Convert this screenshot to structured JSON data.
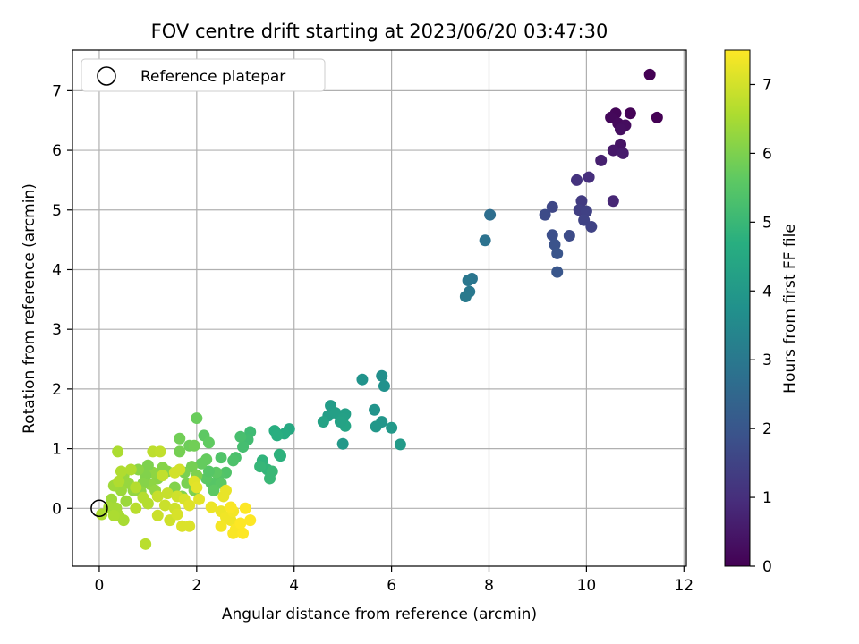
{
  "chart_data": {
    "type": "scatter",
    "title": "FOV centre drift starting at 2023/06/20 03:47:30",
    "xlabel": "Angular distance from reference (arcmin)",
    "ylabel": "Rotation from reference (arcmin)",
    "xlim": [
      -0.55,
      12.05
    ],
    "ylim": [
      -0.97,
      7.68
    ],
    "xticks": [
      0,
      2,
      4,
      6,
      8,
      10,
      12
    ],
    "yticks": [
      0,
      1,
      2,
      3,
      4,
      5,
      6,
      7
    ],
    "grid": true,
    "legend": {
      "placement": "upper-left",
      "entries": [
        "Reference platepar"
      ]
    },
    "reference_point": {
      "x": 0,
      "y": 0
    },
    "colorbar": {
      "label": "Hours from first FF file",
      "colormap": "viridis",
      "range": [
        0,
        7.5
      ],
      "ticks": [
        0,
        1,
        2,
        3,
        4,
        5,
        6,
        7
      ]
    },
    "points": [
      {
        "x": 11.3,
        "y": 7.27,
        "c": 0.0
      },
      {
        "x": 11.45,
        "y": 6.55,
        "c": 0.0
      },
      {
        "x": 10.9,
        "y": 6.62,
        "c": 0.05
      },
      {
        "x": 10.6,
        "y": 6.62,
        "c": 0.1
      },
      {
        "x": 10.5,
        "y": 6.55,
        "c": 0.15
      },
      {
        "x": 10.65,
        "y": 6.45,
        "c": 0.2
      },
      {
        "x": 10.8,
        "y": 6.42,
        "c": 0.25
      },
      {
        "x": 10.7,
        "y": 6.35,
        "c": 0.3
      },
      {
        "x": 10.7,
        "y": 6.1,
        "c": 0.4
      },
      {
        "x": 10.55,
        "y": 6.0,
        "c": 0.5
      },
      {
        "x": 10.75,
        "y": 5.95,
        "c": 0.55
      },
      {
        "x": 10.3,
        "y": 5.83,
        "c": 0.65
      },
      {
        "x": 10.05,
        "y": 5.55,
        "c": 1.0
      },
      {
        "x": 9.8,
        "y": 5.5,
        "c": 1.1
      },
      {
        "x": 10.55,
        "y": 5.15,
        "c": 0.8
      },
      {
        "x": 9.9,
        "y": 5.15,
        "c": 1.3
      },
      {
        "x": 9.85,
        "y": 5.0,
        "c": 1.4
      },
      {
        "x": 10.0,
        "y": 4.98,
        "c": 1.45
      },
      {
        "x": 9.95,
        "y": 4.83,
        "c": 1.5
      },
      {
        "x": 10.1,
        "y": 4.72,
        "c": 1.5
      },
      {
        "x": 9.3,
        "y": 5.05,
        "c": 1.6
      },
      {
        "x": 9.15,
        "y": 4.92,
        "c": 1.7
      },
      {
        "x": 9.65,
        "y": 4.57,
        "c": 1.7
      },
      {
        "x": 9.3,
        "y": 4.58,
        "c": 1.8
      },
      {
        "x": 9.35,
        "y": 4.42,
        "c": 1.9
      },
      {
        "x": 9.4,
        "y": 4.27,
        "c": 1.95
      },
      {
        "x": 9.4,
        "y": 3.96,
        "c": 2.0
      },
      {
        "x": 8.02,
        "y": 4.92,
        "c": 2.7
      },
      {
        "x": 7.92,
        "y": 4.49,
        "c": 2.8
      },
      {
        "x": 7.65,
        "y": 3.85,
        "c": 2.9
      },
      {
        "x": 7.57,
        "y": 3.82,
        "c": 2.95
      },
      {
        "x": 7.6,
        "y": 3.63,
        "c": 3.0
      },
      {
        "x": 7.52,
        "y": 3.55,
        "c": 3.05
      },
      {
        "x": 5.8,
        "y": 2.22,
        "c": 3.7
      },
      {
        "x": 5.85,
        "y": 2.05,
        "c": 3.75
      },
      {
        "x": 5.4,
        "y": 2.16,
        "c": 3.8
      },
      {
        "x": 5.65,
        "y": 1.65,
        "c": 3.85
      },
      {
        "x": 5.8,
        "y": 1.45,
        "c": 3.9
      },
      {
        "x": 5.68,
        "y": 1.37,
        "c": 3.95
      },
      {
        "x": 6.0,
        "y": 1.35,
        "c": 4.0
      },
      {
        "x": 6.18,
        "y": 1.07,
        "c": 4.05
      },
      {
        "x": 5.0,
        "y": 1.08,
        "c": 4.0
      },
      {
        "x": 4.75,
        "y": 1.72,
        "c": 4.1
      },
      {
        "x": 4.7,
        "y": 1.55,
        "c": 4.15
      },
      {
        "x": 4.85,
        "y": 1.6,
        "c": 4.2
      },
      {
        "x": 5.05,
        "y": 1.58,
        "c": 4.2
      },
      {
        "x": 5.0,
        "y": 1.5,
        "c": 4.25
      },
      {
        "x": 4.6,
        "y": 1.45,
        "c": 4.3
      },
      {
        "x": 5.05,
        "y": 1.38,
        "c": 4.35
      },
      {
        "x": 4.95,
        "y": 1.45,
        "c": 4.3
      },
      {
        "x": 3.9,
        "y": 1.33,
        "c": 4.5
      },
      {
        "x": 3.8,
        "y": 1.25,
        "c": 4.6
      },
      {
        "x": 3.6,
        "y": 1.3,
        "c": 4.65
      },
      {
        "x": 3.65,
        "y": 1.22,
        "c": 4.7
      },
      {
        "x": 3.72,
        "y": 0.88,
        "c": 4.75
      },
      {
        "x": 3.7,
        "y": 0.9,
        "c": 4.8
      },
      {
        "x": 3.35,
        "y": 0.8,
        "c": 4.85
      },
      {
        "x": 3.45,
        "y": 0.65,
        "c": 4.9
      },
      {
        "x": 3.3,
        "y": 0.7,
        "c": 4.95
      },
      {
        "x": 3.5,
        "y": 0.5,
        "c": 5.0
      },
      {
        "x": 3.55,
        "y": 0.62,
        "c": 5.0
      },
      {
        "x": 3.1,
        "y": 1.28,
        "c": 5.1
      },
      {
        "x": 3.05,
        "y": 1.15,
        "c": 5.15
      },
      {
        "x": 2.95,
        "y": 1.03,
        "c": 5.2
      },
      {
        "x": 2.9,
        "y": 1.2,
        "c": 5.25
      },
      {
        "x": 2.8,
        "y": 0.85,
        "c": 5.3
      },
      {
        "x": 2.75,
        "y": 0.8,
        "c": 5.35
      },
      {
        "x": 2.5,
        "y": 0.85,
        "c": 5.4
      },
      {
        "x": 2.6,
        "y": 0.6,
        "c": 5.4
      },
      {
        "x": 2.45,
        "y": 0.55,
        "c": 5.45
      },
      {
        "x": 2.3,
        "y": 0.42,
        "c": 5.5
      },
      {
        "x": 2.5,
        "y": 0.42,
        "c": 5.55
      },
      {
        "x": 2.35,
        "y": 0.3,
        "c": 5.6
      },
      {
        "x": 2.4,
        "y": 0.6,
        "c": 5.6
      },
      {
        "x": 2.2,
        "y": 0.5,
        "c": 5.55
      },
      {
        "x": 2.25,
        "y": 0.62,
        "c": 5.5
      },
      {
        "x": 2.15,
        "y": 1.22,
        "c": 5.6
      },
      {
        "x": 2.25,
        "y": 1.1,
        "c": 5.65
      },
      {
        "x": 2.2,
        "y": 0.82,
        "c": 5.7
      },
      {
        "x": 2.1,
        "y": 0.75,
        "c": 5.7
      },
      {
        "x": 2.0,
        "y": 1.51,
        "c": 5.75
      },
      {
        "x": 1.85,
        "y": 1.05,
        "c": 5.8
      },
      {
        "x": 1.95,
        "y": 1.05,
        "c": 5.85
      },
      {
        "x": 1.65,
        "y": 1.17,
        "c": 5.85
      },
      {
        "x": 1.65,
        "y": 0.95,
        "c": 5.9
      },
      {
        "x": 1.9,
        "y": 0.7,
        "c": 5.9
      },
      {
        "x": 1.75,
        "y": 0.6,
        "c": 5.95
      },
      {
        "x": 2.0,
        "y": 0.55,
        "c": 6.0
      },
      {
        "x": 1.8,
        "y": 0.42,
        "c": 5.95
      },
      {
        "x": 1.95,
        "y": 0.3,
        "c": 6.0
      },
      {
        "x": 1.7,
        "y": 0.2,
        "c": 6.05
      },
      {
        "x": 1.55,
        "y": 0.35,
        "c": 6.05
      },
      {
        "x": 1.4,
        "y": 0.62,
        "c": 6.1
      },
      {
        "x": 1.3,
        "y": 0.68,
        "c": 6.1
      },
      {
        "x": 1.2,
        "y": 0.5,
        "c": 6.15
      },
      {
        "x": 1.1,
        "y": 0.6,
        "c": 6.2
      },
      {
        "x": 1.05,
        "y": 0.4,
        "c": 6.2
      },
      {
        "x": 1.15,
        "y": 0.3,
        "c": 6.25
      },
      {
        "x": 1.0,
        "y": 0.72,
        "c": 6.0
      },
      {
        "x": 0.95,
        "y": 0.55,
        "c": 6.05
      },
      {
        "x": 0.9,
        "y": 0.42,
        "c": 6.1
      },
      {
        "x": 0.8,
        "y": 0.65,
        "c": 6.15
      },
      {
        "x": 0.85,
        "y": 0.28,
        "c": 6.2
      },
      {
        "x": 0.7,
        "y": 0.3,
        "c": 6.25
      },
      {
        "x": 0.6,
        "y": 0.42,
        "c": 6.3
      },
      {
        "x": 0.5,
        "y": 0.55,
        "c": 6.3
      },
      {
        "x": 0.55,
        "y": 0.12,
        "c": 6.35
      },
      {
        "x": 0.45,
        "y": 0.3,
        "c": 6.35
      },
      {
        "x": 0.3,
        "y": 0.38,
        "c": 6.4
      },
      {
        "x": 0.25,
        "y": 0.15,
        "c": 6.4
      },
      {
        "x": 0.35,
        "y": 0.0,
        "c": 6.45
      },
      {
        "x": 0.2,
        "y": 0.02,
        "c": 6.45
      },
      {
        "x": 0.4,
        "y": -0.12,
        "c": 6.5
      },
      {
        "x": 0.5,
        "y": -0.2,
        "c": 6.5
      },
      {
        "x": 0.05,
        "y": -0.1,
        "c": 6.55
      },
      {
        "x": 0.3,
        "y": -0.12,
        "c": 6.55
      },
      {
        "x": 0.38,
        "y": 0.95,
        "c": 6.55
      },
      {
        "x": 0.45,
        "y": 0.62,
        "c": 6.6
      },
      {
        "x": 0.4,
        "y": 0.45,
        "c": 6.6
      },
      {
        "x": 0.65,
        "y": 0.65,
        "c": 6.6
      },
      {
        "x": 0.75,
        "y": 0.35,
        "c": 6.65
      },
      {
        "x": 0.9,
        "y": 0.18,
        "c": 6.65
      },
      {
        "x": 1.0,
        "y": 0.08,
        "c": 6.65
      },
      {
        "x": 0.95,
        "y": -0.6,
        "c": 6.7
      },
      {
        "x": 0.75,
        "y": 0.0,
        "c": 6.7
      },
      {
        "x": 1.1,
        "y": 0.95,
        "c": 6.75
      },
      {
        "x": 1.25,
        "y": 0.95,
        "c": 6.8
      },
      {
        "x": 1.3,
        "y": 0.55,
        "c": 6.8
      },
      {
        "x": 1.4,
        "y": 0.25,
        "c": 6.85
      },
      {
        "x": 1.2,
        "y": 0.2,
        "c": 6.85
      },
      {
        "x": 1.35,
        "y": 0.05,
        "c": 6.9
      },
      {
        "x": 1.2,
        "y": -0.12,
        "c": 6.9
      },
      {
        "x": 1.45,
        "y": -0.2,
        "c": 6.95
      },
      {
        "x": 1.55,
        "y": 0.0,
        "c": 6.95
      },
      {
        "x": 1.6,
        "y": 0.2,
        "c": 6.95
      },
      {
        "x": 1.55,
        "y": 0.6,
        "c": 7.0
      },
      {
        "x": 1.65,
        "y": 0.65,
        "c": 7.0
      },
      {
        "x": 1.75,
        "y": 0.15,
        "c": 7.05
      },
      {
        "x": 1.6,
        "y": -0.1,
        "c": 7.05
      },
      {
        "x": 1.7,
        "y": -0.3,
        "c": 7.1
      },
      {
        "x": 1.85,
        "y": -0.3,
        "c": 7.1
      },
      {
        "x": 1.85,
        "y": 0.05,
        "c": 7.15
      },
      {
        "x": 1.95,
        "y": 0.45,
        "c": 7.15
      },
      {
        "x": 2.0,
        "y": 0.35,
        "c": 7.2
      },
      {
        "x": 2.05,
        "y": 0.15,
        "c": 7.2
      },
      {
        "x": 2.6,
        "y": 0.3,
        "c": 7.25
      },
      {
        "x": 2.55,
        "y": 0.2,
        "c": 7.25
      },
      {
        "x": 2.3,
        "y": 0.02,
        "c": 7.3
      },
      {
        "x": 2.5,
        "y": -0.05,
        "c": 7.3
      },
      {
        "x": 2.6,
        "y": -0.15,
        "c": 7.35
      },
      {
        "x": 2.7,
        "y": -0.2,
        "c": 7.35
      },
      {
        "x": 2.75,
        "y": -0.05,
        "c": 7.4
      },
      {
        "x": 2.5,
        "y": -0.3,
        "c": 7.4
      },
      {
        "x": 2.8,
        "y": -0.35,
        "c": 7.45
      },
      {
        "x": 2.75,
        "y": -0.42,
        "c": 7.45
      },
      {
        "x": 2.95,
        "y": -0.42,
        "c": 7.5
      },
      {
        "x": 2.9,
        "y": -0.25,
        "c": 7.5
      },
      {
        "x": 3.0,
        "y": 0.0,
        "c": 7.5
      },
      {
        "x": 3.1,
        "y": -0.2,
        "c": 7.5
      },
      {
        "x": 2.7,
        "y": 0.02,
        "c": 7.45
      }
    ]
  }
}
